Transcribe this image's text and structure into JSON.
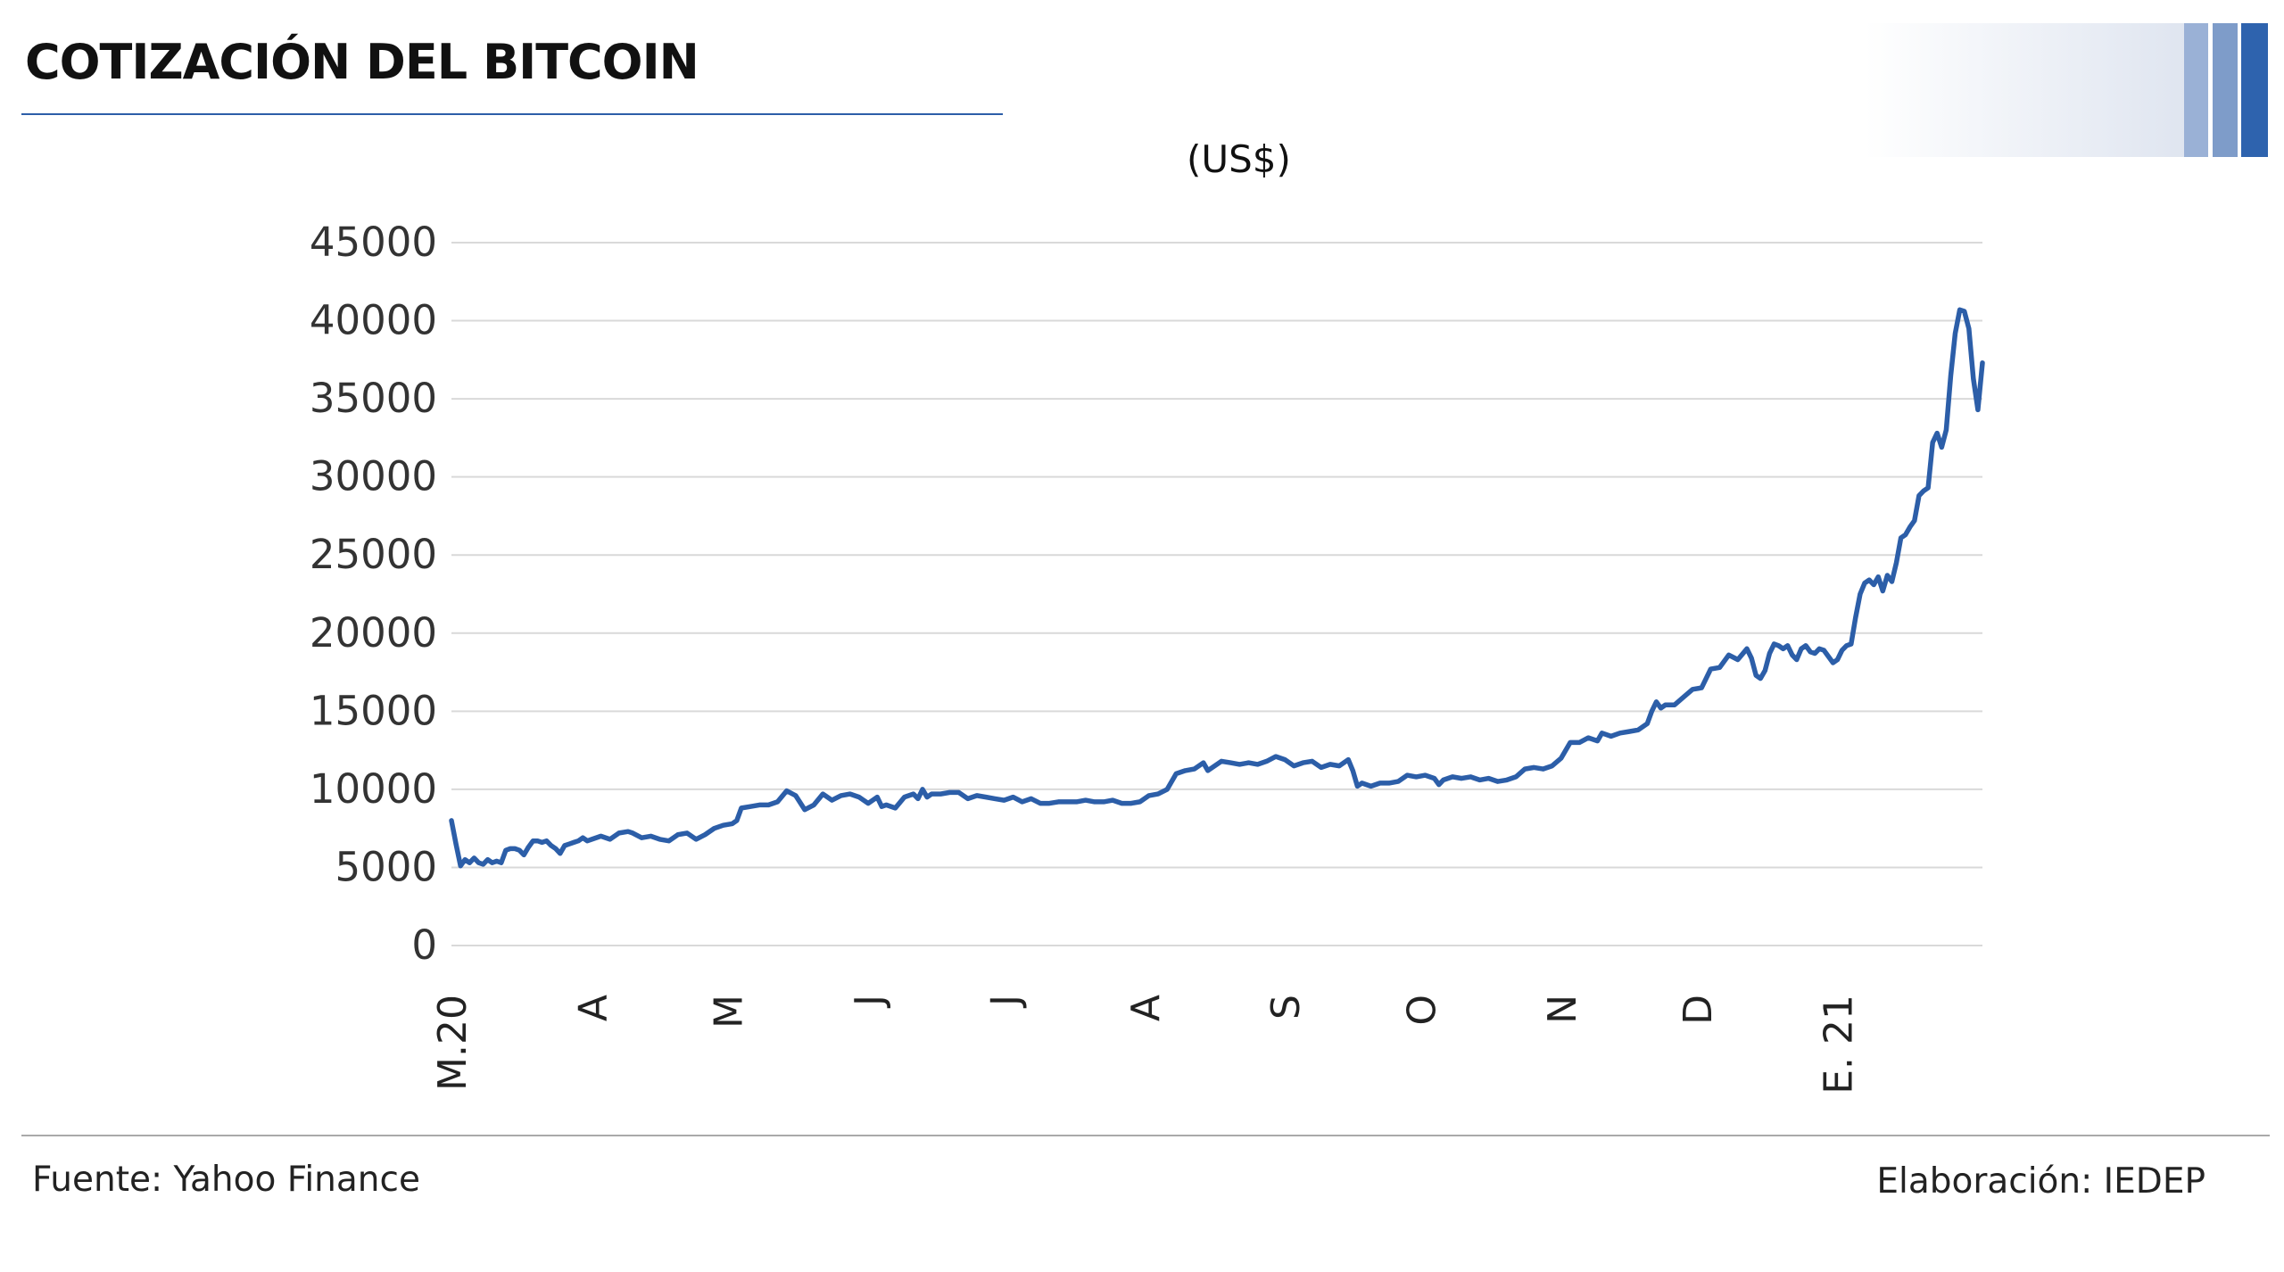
{
  "header": {
    "title": "COTIZACIÓN DEL BITCOIN"
  },
  "footer": {
    "source": "Fuente: Yahoo Finance",
    "credit": "Elaboración: IEDEP"
  },
  "colors": {
    "line": "#2c5ea8",
    "grid": "#d9d9d9",
    "accent_bars": [
      "#9ab1d6",
      "#7e9cc9",
      "#2e63ae"
    ]
  },
  "chart_data": {
    "type": "line",
    "title": "",
    "unit_label": "(US$)",
    "ylim": [
      0,
      45000
    ],
    "yticks": [
      0,
      5000,
      10000,
      15000,
      20000,
      25000,
      30000,
      35000,
      40000,
      45000
    ],
    "grid": true,
    "x_tick_labels": [
      "M.20",
      "A",
      "M",
      "J",
      "J",
      "A",
      "S",
      "O",
      "N",
      "D",
      "E. 21"
    ],
    "x_tick_positions": [
      0,
      31,
      61,
      92,
      122,
      153,
      184,
      214,
      245,
      275,
      306
    ],
    "x_unit": "days from March 1, 2020",
    "series": [
      {
        "name": "",
        "points": [
          [
            0,
            8000
          ],
          [
            1,
            6500
          ],
          [
            2,
            5100
          ],
          [
            3,
            5500
          ],
          [
            4,
            5300
          ],
          [
            5,
            5600
          ],
          [
            6,
            5300
          ],
          [
            7,
            5200
          ],
          [
            8,
            5500
          ],
          [
            9,
            5300
          ],
          [
            10,
            5400
          ],
          [
            11,
            5300
          ],
          [
            12,
            6100
          ],
          [
            13,
            6200
          ],
          [
            14,
            6200
          ],
          [
            15,
            6100
          ],
          [
            16,
            5800
          ],
          [
            17,
            6300
          ],
          [
            18,
            6700
          ],
          [
            19,
            6700
          ],
          [
            20,
            6600
          ],
          [
            21,
            6700
          ],
          [
            22,
            6400
          ],
          [
            23,
            6200
          ],
          [
            24,
            5900
          ],
          [
            25,
            6400
          ],
          [
            26,
            6500
          ],
          [
            27,
            6600
          ],
          [
            28,
            6700
          ],
          [
            29,
            6900
          ],
          [
            30,
            6700
          ],
          [
            31,
            6800
          ],
          [
            33,
            7000
          ],
          [
            35,
            6800
          ],
          [
            37,
            7200
          ],
          [
            39,
            7300
          ],
          [
            40,
            7200
          ],
          [
            42,
            6900
          ],
          [
            44,
            7000
          ],
          [
            46,
            6800
          ],
          [
            48,
            6700
          ],
          [
            50,
            7100
          ],
          [
            52,
            7200
          ],
          [
            54,
            6800
          ],
          [
            56,
            7100
          ],
          [
            58,
            7500
          ],
          [
            60,
            7700
          ],
          [
            62,
            7800
          ],
          [
            63,
            8000
          ],
          [
            64,
            8800
          ],
          [
            66,
            8900
          ],
          [
            68,
            9000
          ],
          [
            70,
            9000
          ],
          [
            72,
            9200
          ],
          [
            74,
            9900
          ],
          [
            76,
            9600
          ],
          [
            78,
            8700
          ],
          [
            80,
            9000
          ],
          [
            82,
            9700
          ],
          [
            84,
            9300
          ],
          [
            86,
            9600
          ],
          [
            88,
            9700
          ],
          [
            90,
            9500
          ],
          [
            92,
            9100
          ],
          [
            94,
            9500
          ],
          [
            95,
            8900
          ],
          [
            96,
            9000
          ],
          [
            98,
            8800
          ],
          [
            100,
            9500
          ],
          [
            102,
            9700
          ],
          [
            103,
            9400
          ],
          [
            104,
            10000
          ],
          [
            105,
            9500
          ],
          [
            106,
            9700
          ],
          [
            108,
            9700
          ],
          [
            110,
            9800
          ],
          [
            112,
            9800
          ],
          [
            114,
            9400
          ],
          [
            116,
            9600
          ],
          [
            118,
            9500
          ],
          [
            120,
            9400
          ],
          [
            122,
            9300
          ],
          [
            124,
            9500
          ],
          [
            126,
            9200
          ],
          [
            128,
            9400
          ],
          [
            130,
            9100
          ],
          [
            132,
            9100
          ],
          [
            134,
            9200
          ],
          [
            136,
            9200
          ],
          [
            138,
            9200
          ],
          [
            140,
            9300
          ],
          [
            142,
            9200
          ],
          [
            144,
            9200
          ],
          [
            146,
            9300
          ],
          [
            148,
            9100
          ],
          [
            150,
            9100
          ],
          [
            152,
            9200
          ],
          [
            154,
            9600
          ],
          [
            156,
            9700
          ],
          [
            158,
            10000
          ],
          [
            160,
            11000
          ],
          [
            162,
            11200
          ],
          [
            164,
            11300
          ],
          [
            166,
            11700
          ],
          [
            167,
            11200
          ],
          [
            168,
            11400
          ],
          [
            170,
            11800
          ],
          [
            172,
            11700
          ],
          [
            174,
            11600
          ],
          [
            176,
            11700
          ],
          [
            178,
            11600
          ],
          [
            180,
            11800
          ],
          [
            182,
            12100
          ],
          [
            184,
            11900
          ],
          [
            186,
            11500
          ],
          [
            188,
            11700
          ],
          [
            190,
            11800
          ],
          [
            192,
            11400
          ],
          [
            194,
            11600
          ],
          [
            196,
            11500
          ],
          [
            198,
            11900
          ],
          [
            199,
            11200
          ],
          [
            200,
            10200
          ],
          [
            201,
            10400
          ],
          [
            203,
            10200
          ],
          [
            205,
            10400
          ],
          [
            207,
            10400
          ],
          [
            209,
            10500
          ],
          [
            211,
            10900
          ],
          [
            213,
            10800
          ],
          [
            215,
            10900
          ],
          [
            217,
            10700
          ],
          [
            218,
            10300
          ],
          [
            219,
            10600
          ],
          [
            221,
            10800
          ],
          [
            223,
            10700
          ],
          [
            225,
            10800
          ],
          [
            227,
            10600
          ],
          [
            229,
            10700
          ],
          [
            231,
            10500
          ],
          [
            233,
            10600
          ],
          [
            235,
            10800
          ],
          [
            237,
            11300
          ],
          [
            239,
            11400
          ],
          [
            241,
            11300
          ],
          [
            243,
            11500
          ],
          [
            245,
            12000
          ],
          [
            247,
            13000
          ],
          [
            249,
            13000
          ],
          [
            251,
            13300
          ],
          [
            253,
            13100
          ],
          [
            254,
            13600
          ],
          [
            256,
            13400
          ],
          [
            258,
            13600
          ],
          [
            260,
            13700
          ],
          [
            262,
            13800
          ],
          [
            264,
            14200
          ],
          [
            265,
            15000
          ],
          [
            266,
            15600
          ],
          [
            267,
            15200
          ],
          [
            268,
            15400
          ],
          [
            270,
            15400
          ],
          [
            272,
            15900
          ],
          [
            274,
            16400
          ],
          [
            276,
            16500
          ],
          [
            278,
            17700
          ],
          [
            280,
            17800
          ],
          [
            282,
            18600
          ],
          [
            284,
            18300
          ],
          [
            286,
            19000
          ],
          [
            287,
            18400
          ],
          [
            288,
            17300
          ],
          [
            289,
            17100
          ],
          [
            290,
            17600
          ],
          [
            291,
            18700
          ],
          [
            292,
            19300
          ],
          [
            293,
            19200
          ],
          [
            294,
            19000
          ],
          [
            295,
            19200
          ],
          [
            296,
            18600
          ],
          [
            297,
            18300
          ],
          [
            298,
            19000
          ],
          [
            299,
            19200
          ],
          [
            300,
            18800
          ],
          [
            301,
            18700
          ],
          [
            302,
            19000
          ],
          [
            303,
            18900
          ],
          [
            304,
            18500
          ],
          [
            305,
            18100
          ],
          [
            306,
            18300
          ],
          [
            307,
            18900
          ],
          [
            308,
            19200
          ],
          [
            309,
            19300
          ],
          [
            310,
            21000
          ],
          [
            311,
            22500
          ],
          [
            312,
            23200
          ],
          [
            313,
            23400
          ],
          [
            314,
            23100
          ],
          [
            315,
            23600
          ],
          [
            316,
            22700
          ],
          [
            317,
            23700
          ],
          [
            318,
            23300
          ],
          [
            319,
            24500
          ],
          [
            320,
            26100
          ],
          [
            321,
            26300
          ],
          [
            322,
            26800
          ],
          [
            323,
            27200
          ],
          [
            324,
            28800
          ],
          [
            325,
            29100
          ],
          [
            326,
            29300
          ],
          [
            327,
            32200
          ],
          [
            328,
            32800
          ],
          [
            329,
            31900
          ],
          [
            330,
            33000
          ],
          [
            331,
            36500
          ],
          [
            332,
            39200
          ],
          [
            333,
            40700
          ],
          [
            334,
            40600
          ],
          [
            335,
            39500
          ],
          [
            336,
            36300
          ],
          [
            337,
            34300
          ],
          [
            338,
            37300
          ]
        ]
      }
    ]
  }
}
